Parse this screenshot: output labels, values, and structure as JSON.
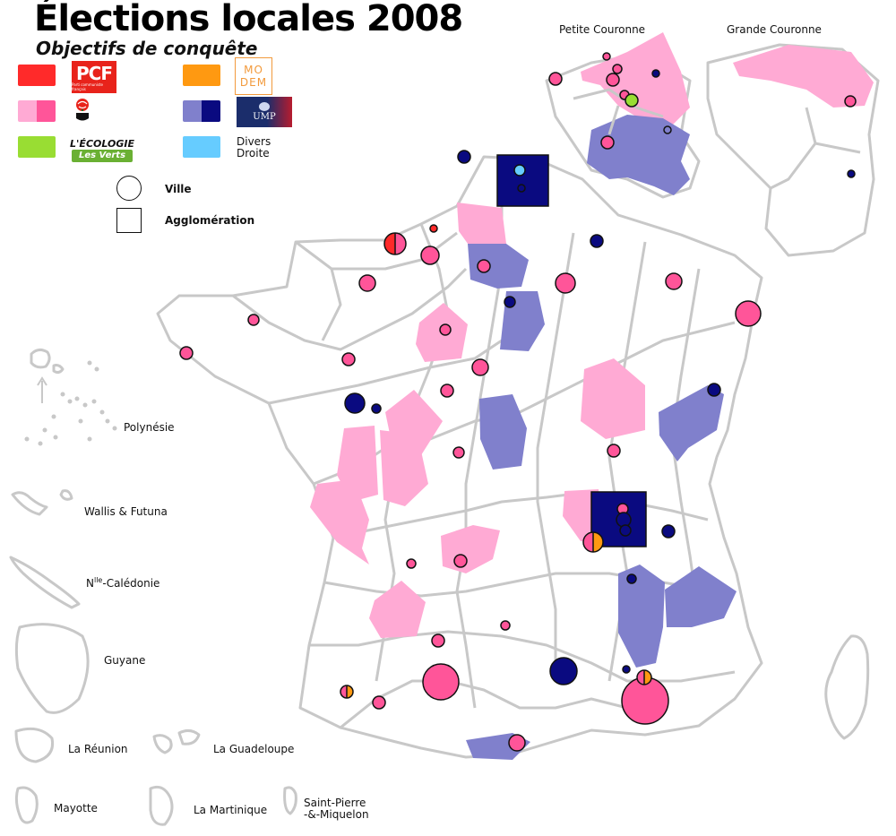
{
  "title": "Élections locales 2008",
  "subtitle": "Objectifs de conquête",
  "legend": {
    "pcf": {
      "color": "#ff2a2a",
      "logo_text": "PCF",
      "logo_small": "Parti communiste français"
    },
    "ps": {
      "colors": [
        "#ffaad4",
        "#ff5599"
      ],
      "logo_icon": "rose-in-fist-icon"
    },
    "verts": {
      "color": "#99dd33",
      "logo_top": "L'ÉCOLOGIE",
      "logo_bottom": "Les Verts"
    },
    "modem": {
      "color": "#ff9911",
      "logo_line1": "MO",
      "logo_line2": "DEM"
    },
    "ump": {
      "colors": [
        "#8080cc",
        "#0a0a80"
      ],
      "logo_text": "UMP"
    },
    "divers_droite": {
      "color": "#66ccff",
      "label_line1": "Divers",
      "label_line2": "Droite"
    },
    "ville_label": "Ville",
    "agglomeration_label": "Agglomération"
  },
  "insets": {
    "petite_couronne": "Petite Couronne",
    "grande_couronne": "Grande Couronne"
  },
  "overseas": {
    "polynesie": "Polynésie",
    "wallis": "Wallis & Futuna",
    "caledonie_prefix": "N",
    "caledonie_sup": "lle",
    "caledonie_suffix": "-Calédonie",
    "guyane": "Guyane",
    "reunion": "La Réunion",
    "guadeloupe": "La Guadeloupe",
    "mayotte": "Mayotte",
    "martinique": "La Martinique",
    "spm_line1": "Saint-Pierre",
    "spm_line2": "-&-Miquelon"
  },
  "map_colors": {
    "border": "#c8c8c8",
    "ps_light": "#ffaad4",
    "ps_dark": "#ff5599",
    "ump_light": "#8080cc",
    "ump_dark": "#0a0a80",
    "pcf": "#ff2a2a",
    "modem": "#ff9911",
    "verts": "#99dd33",
    "divers_droite": "#66ccff"
  }
}
